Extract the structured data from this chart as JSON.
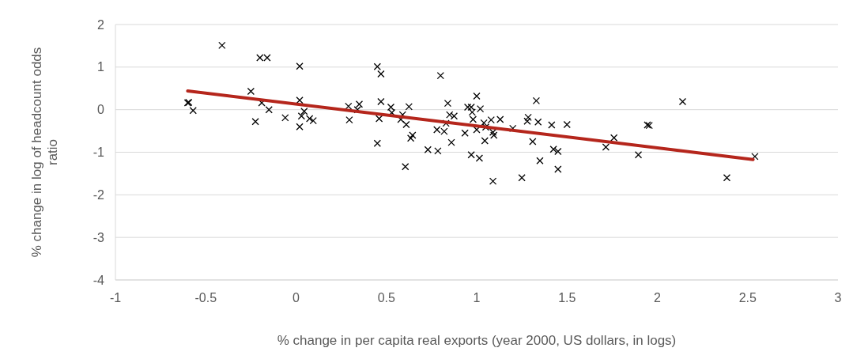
{
  "chart_data": {
    "type": "scatter",
    "xlabel": "% change in per capita real exports (year 2000, US dollars, in logs)",
    "ylabel": "% change in log of headcount odds ratio",
    "xlim": [
      -1,
      3
    ],
    "ylim": [
      -4,
      2
    ],
    "xticks": [
      -1,
      -0.5,
      0,
      0.5,
      1,
      1.5,
      2,
      2.5,
      3
    ],
    "yticks": [
      -4,
      -3,
      -2,
      -1,
      0,
      1,
      2
    ],
    "grid": "y",
    "series": [
      {
        "marker": "cross",
        "color": "#000000",
        "x": [
          -0.594,
          -0.6,
          -0.57,
          -0.41,
          -0.25,
          -0.225,
          -0.2,
          -0.16,
          -0.19,
          -0.15,
          -0.06,
          0.02,
          0.02,
          0.02,
          0.045,
          0.03,
          0.075,
          0.095,
          0.29,
          0.295,
          0.34,
          0.35,
          0.45,
          0.47,
          0.45,
          0.47,
          0.46,
          0.525,
          0.53,
          0.59,
          0.58,
          0.625,
          0.61,
          0.645,
          0.635,
          0.605,
          0.8,
          0.84,
          0.85,
          0.875,
          0.83,
          0.78,
          0.82,
          0.73,
          0.785,
          0.86,
          0.935,
          0.95,
          0.97,
          1.0,
          0.975,
          0.98,
          1.02,
          1.04,
          1.0,
          1.05,
          1.08,
          1.045,
          1.09,
          1.095,
          0.97,
          1.015,
          1.09,
          1.13,
          1.2,
          1.25,
          1.285,
          1.28,
          1.33,
          1.34,
          1.31,
          1.35,
          1.415,
          1.425,
          1.45,
          1.45,
          1.5,
          2.14,
          1.945,
          1.955,
          1.76,
          1.715,
          1.895,
          2.385,
          2.54
        ],
        "values": [
          0.17,
          0.16,
          -0.02,
          1.51,
          0.43,
          -0.28,
          1.22,
          1.22,
          0.16,
          0,
          -0.19,
          1.02,
          0.22,
          -0.4,
          -0.04,
          -0.15,
          -0.21,
          -0.26,
          0.08,
          -0.24,
          0,
          0.13,
          1.01,
          0.84,
          -0.79,
          0.19,
          -0.21,
          0.06,
          -0.07,
          -0.12,
          -0.23,
          0.07,
          -0.35,
          -0.6,
          -0.67,
          -1.34,
          0.8,
          0.15,
          -0.12,
          -0.15,
          -0.32,
          -0.47,
          -0.51,
          -0.94,
          -0.97,
          -0.77,
          -0.55,
          0.06,
          0.06,
          0.32,
          -0.06,
          -0.23,
          0.02,
          -0.31,
          -0.47,
          -0.41,
          -0.24,
          -0.73,
          -0.53,
          -0.6,
          -1.06,
          -1.14,
          -1.68,
          -0.23,
          -0.44,
          -1.6,
          -0.18,
          -0.27,
          0.21,
          -0.29,
          -0.75,
          -1.2,
          -0.36,
          -0.93,
          -0.98,
          -1.4,
          -0.35,
          0.19,
          -0.36,
          -0.37,
          -0.66,
          -0.88,
          -1.06,
          -1.6,
          -1.1
        ]
      },
      {
        "type": "line",
        "marker": "none",
        "color": "#b5261c",
        "x": [
          -0.6,
          2.53
        ],
        "values": [
          0.44,
          -1.17
        ]
      }
    ]
  }
}
